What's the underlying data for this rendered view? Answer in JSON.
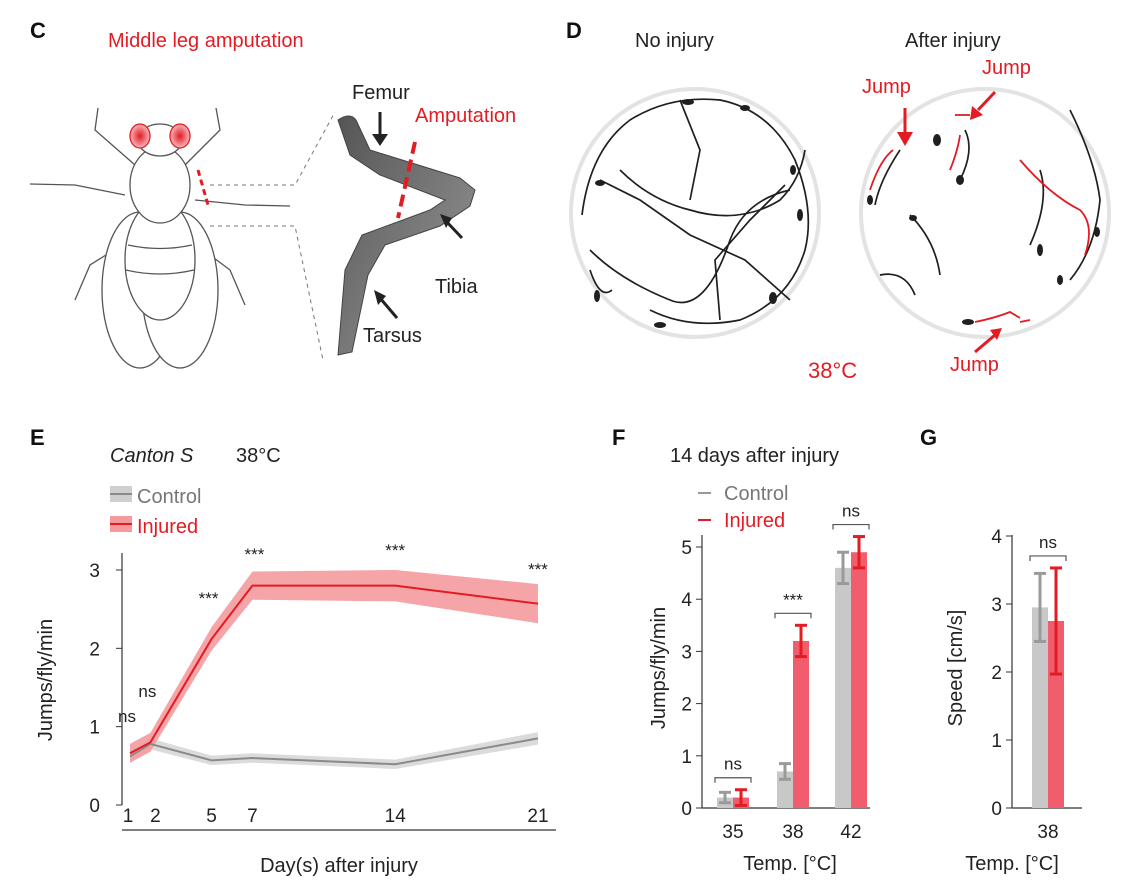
{
  "colors": {
    "control": "#8a8a8a",
    "control_band": "#cfcfcf",
    "injured": "#e31b23",
    "injured_band": "#f49a9f",
    "bar_control": "#c8c8c8",
    "bar_injured": "#f25d6e"
  },
  "panel_c": {
    "letter": "C",
    "title": "Middle leg amputation",
    "labels": {
      "femur": "Femur",
      "amputation": "Amputation",
      "tibia": "Tibia",
      "tarsus": "Tarsus"
    }
  },
  "panel_d": {
    "letter": "D",
    "left_title": "No injury",
    "right_title": "After injury",
    "jump_label": "Jump",
    "temperature": "38°C"
  },
  "chart_data": [
    {
      "panel": "E",
      "type": "line",
      "title_strain": "Canton S",
      "title_temp": "38°C",
      "xlabel": "Day(s) after injury",
      "ylabel": "Jumps/fly/min",
      "ylim": [
        0,
        3.2
      ],
      "yticks": [
        "0",
        "1",
        "2",
        "3"
      ],
      "x": [
        1,
        2,
        5,
        7,
        14,
        21
      ],
      "xticks": [
        "1",
        "2",
        "5",
        "7",
        "14",
        "21"
      ],
      "series": [
        {
          "name": "Control",
          "values": [
            0.62,
            0.78,
            0.57,
            0.6,
            0.52,
            0.85
          ],
          "err": [
            0.07,
            0.07,
            0.06,
            0.06,
            0.06,
            0.08
          ]
        },
        {
          "name": "Injured",
          "values": [
            0.66,
            0.8,
            2.12,
            2.8,
            2.8,
            2.57
          ],
          "err": [
            0.12,
            0.12,
            0.15,
            0.18,
            0.2,
            0.25
          ]
        }
      ],
      "significance": [
        "ns",
        "ns",
        "***",
        "***",
        "***",
        "***"
      ],
      "legend": "top-left"
    },
    {
      "panel": "F",
      "type": "bar",
      "title": "14 days after injury",
      "xlabel": "Temp. [°C]",
      "ylabel": "Jumps/fly/min",
      "ylim": [
        0,
        5.3
      ],
      "yticks": [
        "0",
        "1",
        "2",
        "3",
        "4",
        "5"
      ],
      "categories": [
        "35",
        "38",
        "42"
      ],
      "series": [
        {
          "name": "Control",
          "values": [
            0.2,
            0.7,
            4.6
          ],
          "err": [
            0.1,
            0.15,
            0.3
          ]
        },
        {
          "name": "Injured",
          "values": [
            0.2,
            3.2,
            4.9
          ],
          "err": [
            0.15,
            0.3,
            0.3
          ]
        }
      ],
      "significance": [
        "ns",
        "***",
        "ns"
      ],
      "legend": "top-left"
    },
    {
      "panel": "G",
      "type": "bar",
      "xlabel": "Temp. [°C]",
      "ylabel": "Speed [cm/s]",
      "ylim": [
        0,
        4.2
      ],
      "yticks": [
        "0",
        "1",
        "2",
        "3",
        "4"
      ],
      "categories": [
        "38"
      ],
      "series": [
        {
          "name": "Control",
          "values": [
            2.95
          ],
          "err": [
            0.5
          ]
        },
        {
          "name": "Injured",
          "values": [
            2.75
          ],
          "err": [
            0.78
          ]
        }
      ],
      "significance": [
        "ns"
      ]
    }
  ]
}
